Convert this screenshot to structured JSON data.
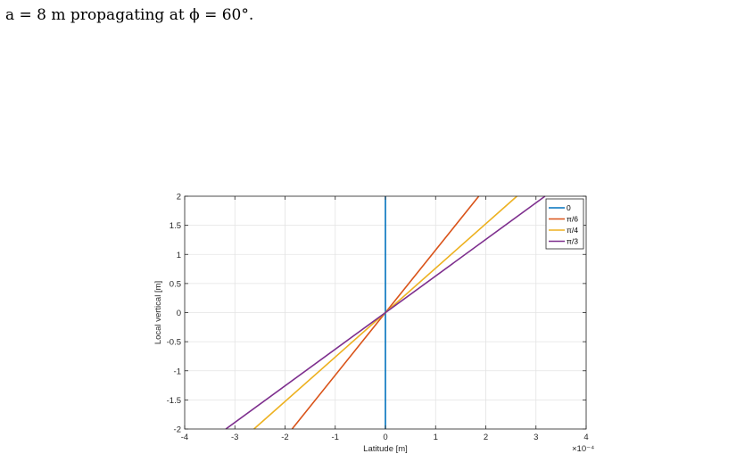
{
  "caption": {
    "line1": "",
    "line2": "a = 8 m propagating at ϕ = 60°."
  },
  "chart_data": {
    "type": "line",
    "xlabel": "Latitude [m]",
    "ylabel": "Local vertical [m]",
    "xlim": [
      -4,
      4
    ],
    "ylim": [
      -2,
      2
    ],
    "x_exponent_label": "×10⁻⁴",
    "xticks": [
      -4,
      -3,
      -2,
      -1,
      0,
      1,
      2,
      3,
      4
    ],
    "xtick_labels": [
      "-4",
      "-3",
      "-2",
      "-1",
      "0",
      "1",
      "2",
      "3",
      "4"
    ],
    "yticks": [
      -2,
      -1.5,
      -1,
      -0.5,
      0,
      0.5,
      1,
      1.5,
      2
    ],
    "ytick_labels": [
      "-2",
      "-1.5",
      "-1",
      "-0.5",
      "0",
      "0.5",
      "1",
      "1.5",
      "2"
    ],
    "grid": true,
    "legend_position": "top-right",
    "series": [
      {
        "name": "0",
        "color": "#0072BD",
        "x": [
          0,
          0
        ],
        "y": [
          -2,
          2
        ]
      },
      {
        "name": "π/6",
        "color": "#D95319",
        "x": [
          -1.86,
          1.86
        ],
        "y": [
          -2,
          2
        ]
      },
      {
        "name": "π/4",
        "color": "#EDB120",
        "x": [
          -2.62,
          2.62
        ],
        "y": [
          -2,
          2
        ]
      },
      {
        "name": "π/3",
        "color": "#7E2F8E",
        "x": [
          -3.18,
          3.18
        ],
        "y": [
          -2,
          2
        ]
      }
    ]
  }
}
